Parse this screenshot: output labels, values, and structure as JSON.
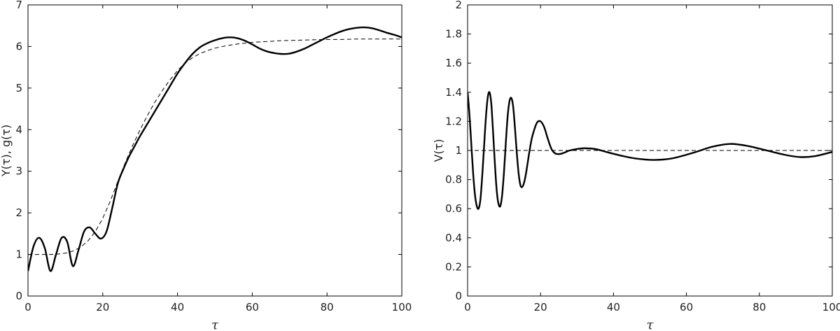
{
  "chart_data": [
    {
      "type": "line",
      "title": "",
      "xlabel": "τ",
      "ylabel": "Y(τ),  g(τ)",
      "xlim": [
        0,
        100
      ],
      "ylim": [
        0,
        7
      ],
      "xticks": [
        "0",
        "20",
        "40",
        "60",
        "80",
        "100"
      ],
      "yticks": [
        "0",
        "1",
        "2",
        "3",
        "4",
        "5",
        "6",
        "7"
      ],
      "grid": false,
      "legend": "none",
      "series": [
        {
          "style": "solid-thick",
          "color": "#000000",
          "x": [
            0,
            1.5,
            3,
            4.5,
            6,
            7.5,
            9,
            10.5,
            12,
            13.5,
            15,
            16.5,
            18,
            19.5,
            21,
            22.5,
            24,
            25.5,
            27,
            28.5,
            30,
            32,
            34,
            36,
            38,
            40,
            42,
            44,
            46,
            48,
            50,
            52,
            54,
            56,
            58,
            60,
            62,
            64,
            66,
            68,
            70,
            72,
            74,
            76,
            78,
            80,
            82,
            84,
            86,
            88,
            90,
            92,
            94,
            96,
            98,
            100
          ],
          "y": [
            0.6,
            1.2,
            1.4,
            1.15,
            0.6,
            1.0,
            1.4,
            1.3,
            0.72,
            1.1,
            1.55,
            1.65,
            1.5,
            1.38,
            1.55,
            2.1,
            2.7,
            3.05,
            3.35,
            3.6,
            3.85,
            4.15,
            4.45,
            4.75,
            5.05,
            5.35,
            5.6,
            5.82,
            5.98,
            6.08,
            6.15,
            6.2,
            6.22,
            6.2,
            6.14,
            6.05,
            5.95,
            5.88,
            5.84,
            5.82,
            5.83,
            5.88,
            5.95,
            6.04,
            6.13,
            6.22,
            6.3,
            6.37,
            6.42,
            6.45,
            6.46,
            6.44,
            6.39,
            6.33,
            6.28,
            6.22
          ]
        },
        {
          "style": "dashed",
          "color": "#000000",
          "x": [
            0,
            2,
            4,
            6,
            8,
            10,
            12,
            14,
            16,
            18,
            20,
            22,
            24,
            26,
            28,
            30,
            32,
            34,
            36,
            38,
            40,
            42,
            44,
            46,
            48,
            50,
            52,
            54,
            56,
            58,
            60,
            64,
            68,
            72,
            76,
            80,
            84,
            88,
            92,
            96,
            100
          ],
          "y": [
            1.0,
            1.0,
            1.0,
            1.0,
            1.01,
            1.03,
            1.08,
            1.17,
            1.32,
            1.55,
            1.87,
            2.28,
            2.75,
            3.2,
            3.62,
            4.0,
            4.35,
            4.67,
            4.95,
            5.2,
            5.42,
            5.6,
            5.73,
            5.83,
            5.9,
            5.96,
            6.0,
            6.03,
            6.06,
            6.08,
            6.1,
            6.12,
            6.14,
            6.15,
            6.16,
            6.17,
            6.17,
            6.18,
            6.18,
            6.18,
            6.18
          ]
        }
      ]
    },
    {
      "type": "line",
      "title": "",
      "xlabel": "τ",
      "ylabel": "V(τ)",
      "xlim": [
        0,
        100
      ],
      "ylim": [
        0,
        2
      ],
      "xticks": [
        "0",
        "20",
        "40",
        "60",
        "80",
        "100"
      ],
      "yticks": [
        "0",
        "0.2",
        "0.4",
        "0.6",
        "0.8",
        "1",
        "1.2",
        "1.4",
        "1.6",
        "1.8",
        "2"
      ],
      "grid": false,
      "legend": "none",
      "series": [
        {
          "style": "solid-thick",
          "color": "#000000",
          "x": [
            0,
            0.5,
            1,
            1.5,
            2,
            2.5,
            3,
            3.5,
            4,
            4.5,
            5,
            5.5,
            6,
            6.5,
            7,
            7.5,
            8,
            8.5,
            9,
            9.5,
            10,
            10.5,
            11,
            11.5,
            12,
            12.5,
            13,
            13.5,
            14,
            14.5,
            15,
            15.5,
            16,
            16.5,
            17,
            17.5,
            18,
            19,
            20,
            21,
            22,
            23,
            24,
            25,
            26,
            27,
            28,
            30,
            32,
            35,
            38,
            42,
            46,
            51,
            56,
            62,
            67,
            72,
            77,
            82,
            87,
            91,
            95,
            100
          ],
          "y": [
            1.4,
            1.25,
            1.05,
            0.85,
            0.7,
            0.62,
            0.6,
            0.66,
            0.82,
            1.02,
            1.22,
            1.36,
            1.4,
            1.32,
            1.12,
            0.9,
            0.72,
            0.63,
            0.62,
            0.7,
            0.86,
            1.06,
            1.24,
            1.34,
            1.36,
            1.3,
            1.15,
            0.98,
            0.84,
            0.76,
            0.75,
            0.78,
            0.84,
            0.92,
            1.0,
            1.07,
            1.12,
            1.19,
            1.2,
            1.16,
            1.08,
            1.01,
            0.98,
            0.975,
            0.98,
            0.99,
            1.0,
            1.01,
            1.015,
            1.01,
            0.99,
            0.965,
            0.945,
            0.935,
            0.945,
            0.985,
            1.025,
            1.045,
            1.03,
            1.0,
            0.97,
            0.955,
            0.96,
            0.99
          ]
        },
        {
          "style": "dashed",
          "color": "#000000",
          "x": [
            0,
            100
          ],
          "y": [
            1,
            1
          ]
        }
      ]
    }
  ]
}
